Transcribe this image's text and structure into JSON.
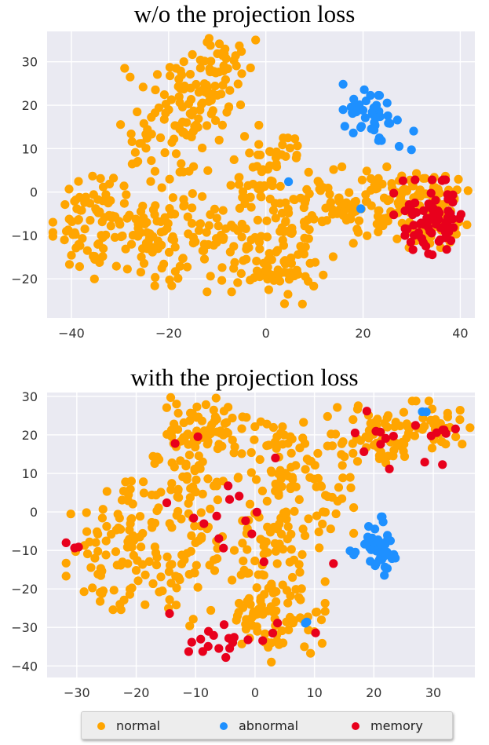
{
  "colors": {
    "normal": "#FFA500",
    "abnormal": "#1E90FF",
    "memory": "#E8001C",
    "panel": "#EAEAF2",
    "grid": "#FFFFFF"
  },
  "legend": {
    "normal": "normal",
    "abnormal": "abnormal",
    "memory": "memory"
  },
  "chart_data": [
    {
      "type": "scatter",
      "title": "w/o the projection loss",
      "xlim": [
        -45,
        43
      ],
      "ylim": [
        -29,
        37
      ],
      "xticks": [
        -40,
        -20,
        0,
        20,
        40
      ],
      "yticks": [
        -20,
        -10,
        0,
        10,
        20,
        30
      ],
      "grid": true,
      "clusters": [
        {
          "cls": "normal",
          "cx": -14,
          "cy": 20,
          "sx": 4,
          "sy": 7,
          "n": 90,
          "seed": 11
        },
        {
          "cls": "normal",
          "cx": -8,
          "cy": 30,
          "sx": 3,
          "sy": 3,
          "n": 25,
          "seed": 12
        },
        {
          "cls": "normal",
          "cx": -25,
          "cy": 12,
          "sx": 3,
          "sy": 8,
          "n": 30,
          "seed": 13
        },
        {
          "cls": "normal",
          "cx": -35,
          "cy": -8,
          "sx": 4,
          "sy": 6,
          "n": 70,
          "seed": 14
        },
        {
          "cls": "normal",
          "cx": -22,
          "cy": -10,
          "sx": 6,
          "sy": 6,
          "n": 90,
          "seed": 15
        },
        {
          "cls": "normal",
          "cx": -8,
          "cy": -12,
          "sx": 5,
          "sy": 5,
          "n": 60,
          "seed": 16
        },
        {
          "cls": "normal",
          "cx": 0,
          "cy": 5,
          "sx": 4,
          "sy": 5,
          "n": 50,
          "seed": 17
        },
        {
          "cls": "normal",
          "cx": 3,
          "cy": -17,
          "sx": 4,
          "sy": 4,
          "n": 50,
          "seed": 18
        },
        {
          "cls": "normal",
          "cx": 8,
          "cy": -4,
          "sx": 5,
          "sy": 5,
          "n": 50,
          "seed": 19
        },
        {
          "cls": "normal",
          "cx": 17,
          "cy": -3,
          "sx": 4,
          "sy": 4,
          "n": 40,
          "seed": 20
        },
        {
          "cls": "normal",
          "cx": 29,
          "cy": -3,
          "sx": 5,
          "sy": 4,
          "n": 90,
          "seed": 21
        },
        {
          "cls": "normal",
          "cx": 35,
          "cy": -4,
          "sx": 3,
          "sy": 4,
          "n": 50,
          "seed": 22
        },
        {
          "cls": "abnormal",
          "cx": 21,
          "cy": 18,
          "sx": 2.8,
          "sy": 2.8,
          "n": 40,
          "seed": 31
        },
        {
          "cls": "abnormal",
          "cx": 29,
          "cy": 11,
          "sx": 2,
          "sy": 2,
          "n": 3,
          "seed": 32
        },
        {
          "cls": "abnormal",
          "cx": 16,
          "cy": 24,
          "sx": 0.5,
          "sy": 0.5,
          "n": 1,
          "seed": 33
        },
        {
          "cls": "abnormal",
          "cx": 5,
          "cy": 2,
          "sx": 0.3,
          "sy": 0.3,
          "n": 1,
          "seed": 34
        },
        {
          "cls": "abnormal",
          "cx": 20,
          "cy": -4,
          "sx": 0.3,
          "sy": 0.3,
          "n": 1,
          "seed": 35
        },
        {
          "cls": "memory",
          "cx": 34,
          "cy": -6,
          "sx": 3.5,
          "sy": 4,
          "n": 75,
          "seed": 41
        }
      ]
    },
    {
      "type": "scatter",
      "title": "with the projection loss",
      "xlim": [
        -35,
        37
      ],
      "ylim": [
        -43,
        31
      ],
      "xticks": [
        -30,
        -20,
        -10,
        0,
        10,
        20,
        30
      ],
      "yticks": [
        -40,
        -30,
        -20,
        -10,
        0,
        10,
        20,
        30
      ],
      "grid": true,
      "clusters": [
        {
          "cls": "normal",
          "cx": -9,
          "cy": 20,
          "sx": 4,
          "sy": 5,
          "n": 70,
          "seed": 51
        },
        {
          "cls": "normal",
          "cx": -13,
          "cy": 8,
          "sx": 4,
          "sy": 5,
          "n": 50,
          "seed": 52
        },
        {
          "cls": "normal",
          "cx": -23,
          "cy": -10,
          "sx": 4,
          "sy": 7,
          "n": 80,
          "seed": 53
        },
        {
          "cls": "normal",
          "cx": -12,
          "cy": -12,
          "sx": 4,
          "sy": 8,
          "n": 60,
          "seed": 54
        },
        {
          "cls": "normal",
          "cx": 3,
          "cy": -28,
          "sx": 4,
          "sy": 5,
          "n": 80,
          "seed": 55
        },
        {
          "cls": "normal",
          "cx": 2,
          "cy": -10,
          "sx": 4,
          "sy": 6,
          "n": 60,
          "seed": 56
        },
        {
          "cls": "normal",
          "cx": 4,
          "cy": 12,
          "sx": 4,
          "sy": 6,
          "n": 60,
          "seed": 57
        },
        {
          "cls": "normal",
          "cx": 10,
          "cy": 2,
          "sx": 3,
          "sy": 5,
          "n": 30,
          "seed": 58
        },
        {
          "cls": "normal",
          "cx": 21,
          "cy": 20,
          "sx": 4,
          "sy": 4,
          "n": 70,
          "seed": 59
        },
        {
          "cls": "normal",
          "cx": 31,
          "cy": 22,
          "sx": 3,
          "sy": 2,
          "n": 30,
          "seed": 60
        },
        {
          "cls": "abnormal",
          "cx": 21,
          "cy": -9,
          "sx": 1.4,
          "sy": 3.5,
          "n": 45,
          "seed": 61
        },
        {
          "cls": "abnormal",
          "cx": 15,
          "cy": -10,
          "sx": 1.2,
          "sy": 1.2,
          "n": 3,
          "seed": 62
        },
        {
          "cls": "abnormal",
          "cx": 28,
          "cy": 26,
          "sx": 0.5,
          "sy": 0.5,
          "n": 2,
          "seed": 63
        },
        {
          "cls": "abnormal",
          "cx": 8,
          "cy": -29,
          "sx": 0.5,
          "sy": 0.5,
          "n": 2,
          "seed": 64
        },
        {
          "cls": "memory",
          "cx": -3,
          "cy": -33,
          "sx": 6,
          "sy": 3,
          "n": 20,
          "seed": 71
        },
        {
          "cls": "memory",
          "cx": 25,
          "cy": 19,
          "sx": 6,
          "sy": 4,
          "n": 18,
          "seed": 72
        },
        {
          "cls": "memory",
          "cx": 0,
          "cy": 0,
          "sx": 10,
          "sy": 14,
          "n": 18,
          "seed": 73
        },
        {
          "cls": "memory",
          "cx": -31,
          "cy": -9,
          "sx": 0.8,
          "sy": 1.5,
          "n": 3,
          "seed": 74
        }
      ]
    }
  ]
}
